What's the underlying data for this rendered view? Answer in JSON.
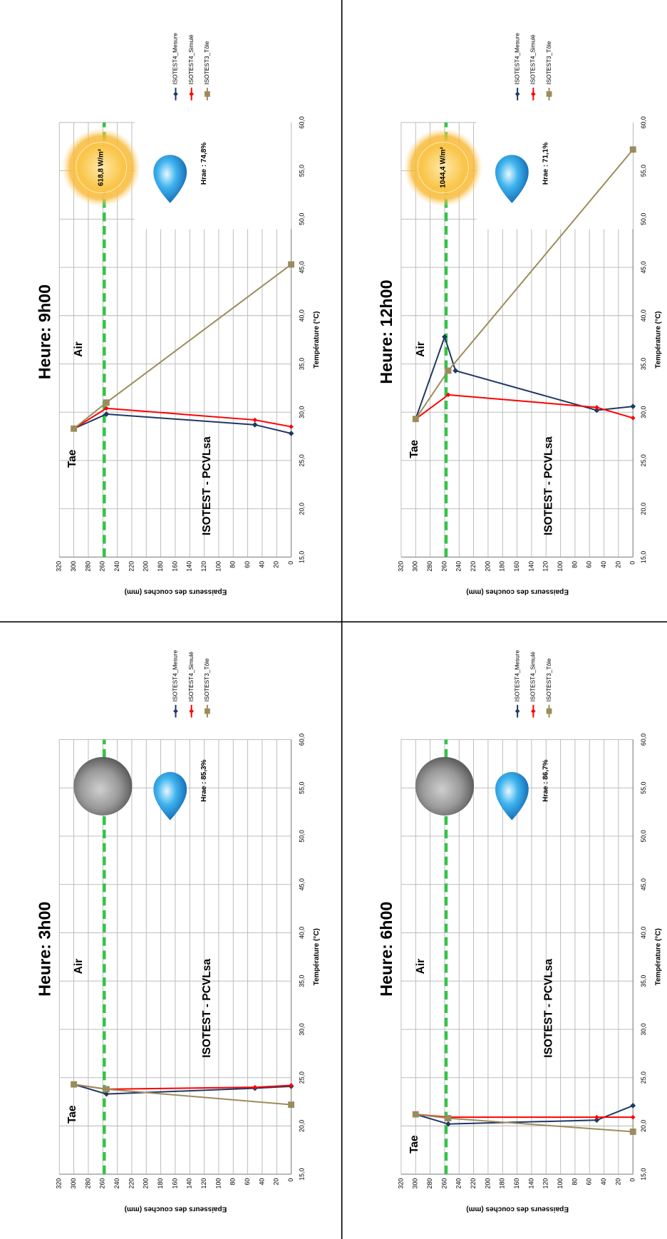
{
  "chart_data": [
    {
      "type": "line",
      "title": "Heure: 3h00",
      "x_label": "Température (°C)",
      "y_label": "Epaisseurs des couches (mm)",
      "xlim": [
        15,
        60
      ],
      "xticks": [
        {
          "value": 15,
          "label": "15,0"
        },
        {
          "value": 20,
          "label": "20,0"
        },
        {
          "value": 25,
          "label": "25,0"
        },
        {
          "value": 30,
          "label": "30,0"
        },
        {
          "value": 35,
          "label": "35,0"
        },
        {
          "value": 40,
          "label": "40,0"
        },
        {
          "value": 45,
          "label": "45,0"
        },
        {
          "value": 50,
          "label": "50,0"
        },
        {
          "value": 55,
          "label": "55,0"
        },
        {
          "value": 60,
          "label": "60,0"
        }
      ],
      "ylim": [
        0,
        320
      ],
      "yticks": [
        0,
        20,
        40,
        60,
        80,
        100,
        120,
        140,
        160,
        180,
        200,
        220,
        240,
        260,
        280,
        300,
        320
      ],
      "grid": true,
      "sky": "moon",
      "humidity_label": "Hrae : 85,3%",
      "annotations": [
        "Tae",
        "Air",
        "ISOTEST - PCVLsa"
      ],
      "reference_line": {
        "y": 258,
        "color": "#33c447"
      },
      "series": [
        {
          "name": "ISOTEST4_Mesure",
          "color": "#1f3864",
          "marker": "diamond",
          "x": [
            24.3,
            23.3,
            23.9,
            24.1
          ],
          "y": [
            300,
            255,
            50,
            0
          ]
        },
        {
          "name": "ISOTEST4_Simulé",
          "color": "#ff0000",
          "marker": "diamond",
          "x": [
            24.3,
            23.8,
            24.0,
            24.2
          ],
          "y": [
            300,
            255,
            50,
            0
          ]
        },
        {
          "name": "ISOTEST3_Tôle",
          "color": "#9c8c5c",
          "marker": "square",
          "x": [
            24.3,
            23.8,
            22.2
          ],
          "y": [
            300,
            255,
            0
          ]
        }
      ]
    },
    {
      "type": "line",
      "title": "Heure: 6h00",
      "x_label": "Température (°C)",
      "y_label": "Epaisseurs des couches (mm)",
      "xlim": [
        15,
        60
      ],
      "xticks": [
        {
          "value": 15,
          "label": "15,0"
        },
        {
          "value": 20,
          "label": "20,0"
        },
        {
          "value": 25,
          "label": "25,0"
        },
        {
          "value": 30,
          "label": "30,0"
        },
        {
          "value": 35,
          "label": "35,0"
        },
        {
          "value": 40,
          "label": "40,0"
        },
        {
          "value": 45,
          "label": "45,0"
        },
        {
          "value": 50,
          "label": "50,0"
        },
        {
          "value": 55,
          "label": "55,0"
        },
        {
          "value": 60,
          "label": "60,0"
        }
      ],
      "ylim": [
        0,
        320
      ],
      "yticks": [
        0,
        20,
        40,
        60,
        80,
        100,
        120,
        140,
        160,
        180,
        200,
        220,
        240,
        260,
        280,
        300,
        320
      ],
      "grid": true,
      "sky": "moon",
      "humidity_label": "Hrae : 86,7%",
      "annotations": [
        "Tae",
        "Air",
        "ISOTEST - PCVLsa"
      ],
      "reference_line": {
        "y": 258,
        "color": "#33c447"
      },
      "series": [
        {
          "name": "ISOTEST4_Mesure",
          "color": "#1f3864",
          "marker": "diamond",
          "x": [
            21.2,
            20.2,
            20.6,
            22.1
          ],
          "y": [
            300,
            255,
            50,
            0
          ]
        },
        {
          "name": "ISOTEST4_Simulé",
          "color": "#ff0000",
          "marker": "diamond",
          "x": [
            21.2,
            20.9,
            20.9,
            20.9
          ],
          "y": [
            300,
            255,
            50,
            0
          ]
        },
        {
          "name": "ISOTEST3_Tôle",
          "color": "#9c8c5c",
          "marker": "square",
          "x": [
            21.2,
            20.8,
            19.4
          ],
          "y": [
            300,
            255,
            0
          ]
        }
      ]
    },
    {
      "type": "line",
      "title": "Heure: 9h00",
      "x_label": "Température (°C)",
      "y_label": "Epaisseurs des couches (mm)",
      "xlim": [
        15,
        60
      ],
      "xticks": [
        {
          "value": 15,
          "label": "15,0"
        },
        {
          "value": 20,
          "label": "20,0"
        },
        {
          "value": 25,
          "label": "25,0"
        },
        {
          "value": 30,
          "label": "30,0"
        },
        {
          "value": 35,
          "label": "35,0"
        },
        {
          "value": 40,
          "label": "40,0"
        },
        {
          "value": 45,
          "label": "45,0"
        },
        {
          "value": 50,
          "label": "50,0"
        },
        {
          "value": 55,
          "label": "55,0"
        },
        {
          "value": 60,
          "label": "60,0"
        }
      ],
      "ylim": [
        0,
        320
      ],
      "yticks": [
        0,
        20,
        40,
        60,
        80,
        100,
        120,
        140,
        160,
        180,
        200,
        220,
        240,
        260,
        280,
        300,
        320
      ],
      "grid": true,
      "sky": "sun",
      "irradiance_label": "618,8 W/m²",
      "humidity_label": "Hrae : 74,8%",
      "annotations": [
        "Tae",
        "Air",
        "ISOTEST - PCVLsa"
      ],
      "reference_line": {
        "y": 258,
        "color": "#33c447"
      },
      "series": [
        {
          "name": "ISOTEST4_Mesure",
          "color": "#1f3864",
          "marker": "diamond",
          "x": [
            28.3,
            29.8,
            28.7,
            27.8
          ],
          "y": [
            300,
            255,
            50,
            0
          ]
        },
        {
          "name": "ISOTEST4_Simulé",
          "color": "#ff0000",
          "marker": "diamond",
          "x": [
            28.3,
            30.4,
            29.2,
            28.5
          ],
          "y": [
            300,
            255,
            50,
            0
          ]
        },
        {
          "name": "ISOTEST3_Tôle",
          "color": "#9c8c5c",
          "marker": "square",
          "x": [
            28.3,
            31.0,
            45.3
          ],
          "y": [
            300,
            255,
            0
          ]
        }
      ]
    },
    {
      "type": "line",
      "title": "Heure: 12h00",
      "x_label": "Température (°C)",
      "y_label": "Epaisseurs des couches (mm)",
      "xlim": [
        15,
        60
      ],
      "xticks": [
        {
          "value": 15,
          "label": "15,0"
        },
        {
          "value": 20,
          "label": "20,0"
        },
        {
          "value": 25,
          "label": "25,0"
        },
        {
          "value": 30,
          "label": "30,0"
        },
        {
          "value": 35,
          "label": "35,0"
        },
        {
          "value": 40,
          "label": "40,0"
        },
        {
          "value": 45,
          "label": "45,0"
        },
        {
          "value": 50,
          "label": "50,0"
        },
        {
          "value": 55,
          "label": "55,0"
        },
        {
          "value": 60,
          "label": "60,0"
        }
      ],
      "ylim": [
        0,
        320
      ],
      "yticks": [
        0,
        20,
        40,
        60,
        80,
        100,
        120,
        140,
        160,
        180,
        200,
        220,
        240,
        260,
        280,
        300,
        320
      ],
      "grid": true,
      "sky": "sun",
      "irradiance_label": "1044,4 W/m²",
      "humidity_label": "Hrae : 71,1%",
      "annotations": [
        "Tae",
        "Air",
        "ISOTEST - PCVLsa"
      ],
      "reference_line": {
        "y": 258,
        "color": "#33c447"
      },
      "series": [
        {
          "name": "ISOTEST4_Mesure",
          "color": "#1f3864",
          "marker": "diamond",
          "x": [
            29.3,
            37.8,
            34.3,
            30.2,
            30.6
          ],
          "y": [
            300,
            260,
            245,
            50,
            0
          ]
        },
        {
          "name": "ISOTEST4_Simulé",
          "color": "#ff0000",
          "marker": "diamond",
          "x": [
            29.3,
            31.8,
            30.5,
            29.4
          ],
          "y": [
            300,
            255,
            50,
            0
          ]
        },
        {
          "name": "ISOTEST3_Tôle",
          "color": "#9c8c5c",
          "marker": "square",
          "x": [
            29.3,
            34.3,
            57.2
          ],
          "y": [
            300,
            255,
            0
          ]
        }
      ]
    }
  ]
}
